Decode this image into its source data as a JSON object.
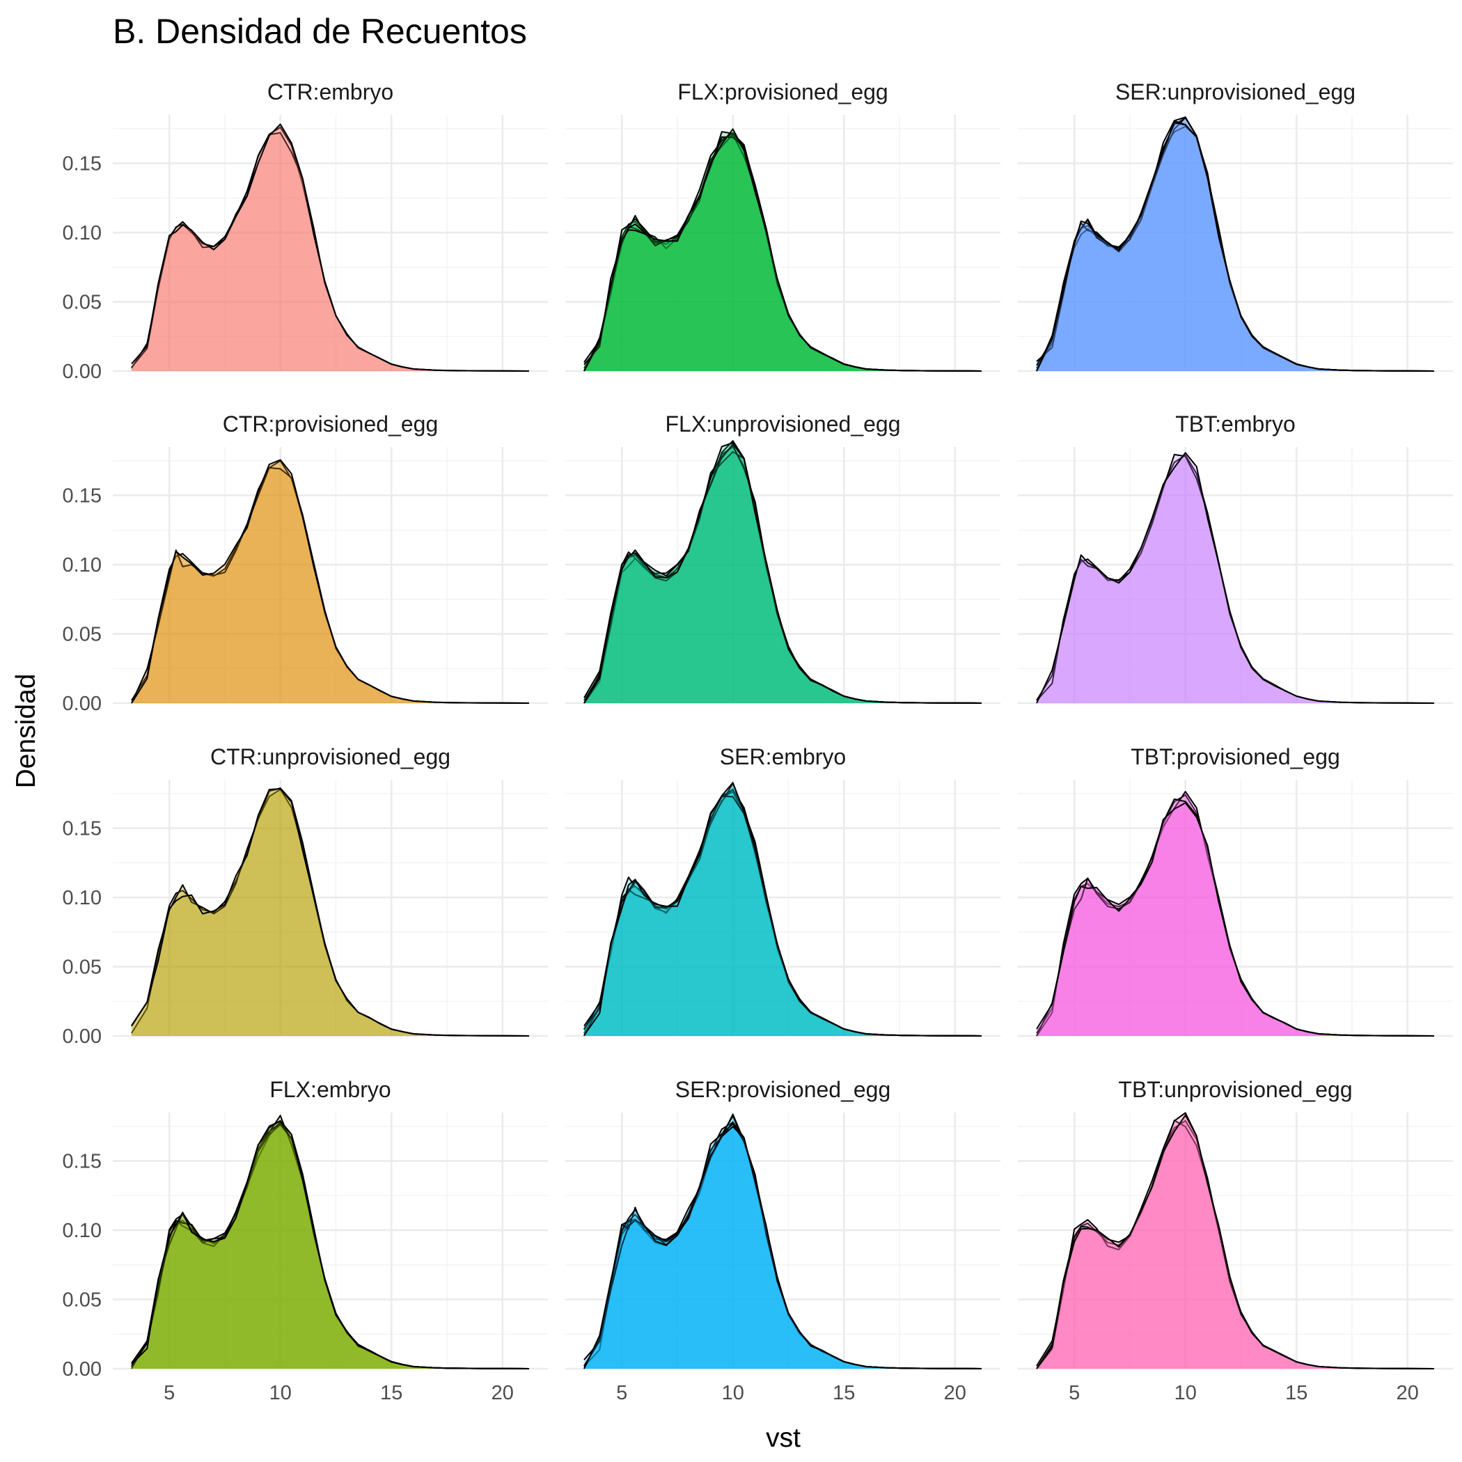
{
  "chart_data": {
    "type": "area",
    "title": "B. Densidad de Recuentos",
    "xlabel": "vst",
    "ylabel": "Densidad",
    "xlim": [
      3.3,
      21.2
    ],
    "ylim": [
      0,
      0.185
    ],
    "x_ticks": [
      5,
      10,
      15,
      20
    ],
    "x_tick_labels": [
      "5",
      "10",
      "15",
      "20"
    ],
    "y_ticks": [
      0,
      0.05,
      0.1,
      0.15
    ],
    "y_tick_labels": [
      "0.00",
      "0.05",
      "0.10",
      "0.15"
    ],
    "grid": true,
    "legend": "none",
    "facet_layout": {
      "rows": 4,
      "cols": 3
    },
    "density_shape": {
      "x": [
        3.3,
        4.0,
        4.5,
        5.0,
        5.3,
        5.6,
        6.0,
        6.5,
        7.0,
        7.5,
        8.0,
        8.5,
        9.0,
        9.5,
        10.0,
        10.5,
        11.0,
        11.5,
        12.0,
        12.5,
        13.0,
        13.5,
        14.0,
        14.5,
        15.0,
        15.5,
        16.0,
        17.0,
        18.0,
        19.0,
        20.0,
        21.2
      ],
      "y": [
        0.002,
        0.02,
        0.06,
        0.095,
        0.104,
        0.106,
        0.1,
        0.092,
        0.09,
        0.097,
        0.112,
        0.13,
        0.155,
        0.171,
        0.176,
        0.163,
        0.135,
        0.1,
        0.065,
        0.04,
        0.026,
        0.017,
        0.013,
        0.009,
        0.005,
        0.003,
        0.0015,
        0.0006,
        0.0003,
        0.0002,
        0.0001,
        0.0
      ]
    },
    "facets": [
      {
        "label": "CTR:embryo",
        "color": "#f8766d",
        "alpha": 0.5,
        "peak": 0.176,
        "shoulder": 0.106,
        "n_samples": 3
      },
      {
        "label": "FLX:provisioned_egg",
        "color": "#00ba38",
        "alpha": 0.85,
        "peak": 0.172,
        "shoulder": 0.108,
        "n_samples": 6
      },
      {
        "label": "SER:unprovisioned_egg",
        "color": "#619cff",
        "alpha": 0.85,
        "peak": 0.183,
        "shoulder": 0.105,
        "n_samples": 6
      },
      {
        "label": "CTR:provisioned_egg",
        "color": "#de8c00",
        "alpha": 0.5,
        "peak": 0.175,
        "shoulder": 0.108,
        "n_samples": 3
      },
      {
        "label": "FLX:unprovisioned_egg",
        "color": "#00bf7d",
        "alpha": 0.85,
        "peak": 0.185,
        "shoulder": 0.107,
        "n_samples": 6
      },
      {
        "label": "TBT:embryo",
        "color": "#c77cff",
        "alpha": 0.5,
        "peak": 0.179,
        "shoulder": 0.104,
        "n_samples": 3
      },
      {
        "label": "CTR:unprovisioned_egg",
        "color": "#b79f00",
        "alpha": 0.5,
        "peak": 0.178,
        "shoulder": 0.105,
        "n_samples": 3
      },
      {
        "label": "SER:embryo",
        "color": "#00bfc4",
        "alpha": 0.85,
        "peak": 0.178,
        "shoulder": 0.108,
        "n_samples": 6
      },
      {
        "label": "TBT:provisioned_egg",
        "color": "#f564e3",
        "alpha": 0.75,
        "peak": 0.174,
        "shoulder": 0.11,
        "n_samples": 4
      },
      {
        "label": "FLX:embryo",
        "color": "#7cae00",
        "alpha": 0.85,
        "peak": 0.179,
        "shoulder": 0.107,
        "n_samples": 6
      },
      {
        "label": "SER:provisioned_egg",
        "color": "#00b0f6",
        "alpha": 0.85,
        "peak": 0.178,
        "shoulder": 0.108,
        "n_samples": 6
      },
      {
        "label": "TBT:unprovisioned_egg",
        "color": "#ff64b0",
        "alpha": 0.65,
        "peak": 0.179,
        "shoulder": 0.105,
        "n_samples": 4
      }
    ]
  }
}
